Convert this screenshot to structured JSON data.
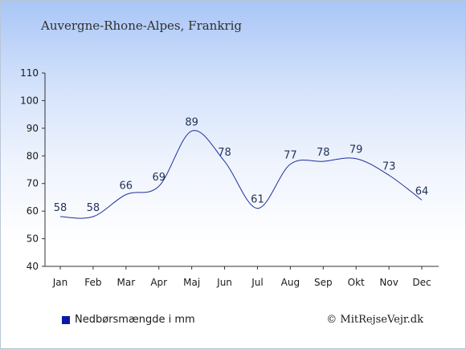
{
  "chart_data": {
    "type": "line",
    "subtitle": "Auvergne-Rhone-Alpes, Frankrig",
    "categories": [
      "Jan",
      "Feb",
      "Mar",
      "Apr",
      "Maj",
      "Jun",
      "Jul",
      "Aug",
      "Sep",
      "Okt",
      "Nov",
      "Dec"
    ],
    "series": [
      {
        "name": "Nedbørsmængde i mm",
        "values": [
          58,
          58,
          66,
          69,
          89,
          78,
          61,
          77,
          78,
          79,
          73,
          64
        ]
      }
    ],
    "yticks": [
      40,
      50,
      60,
      70,
      80,
      90,
      100,
      110
    ],
    "ylim": [
      40,
      110
    ],
    "grid": false,
    "legend_position": "bottom-left",
    "line_color": "#1d2f9e",
    "credit": "© MitRejseVejr.dk"
  }
}
